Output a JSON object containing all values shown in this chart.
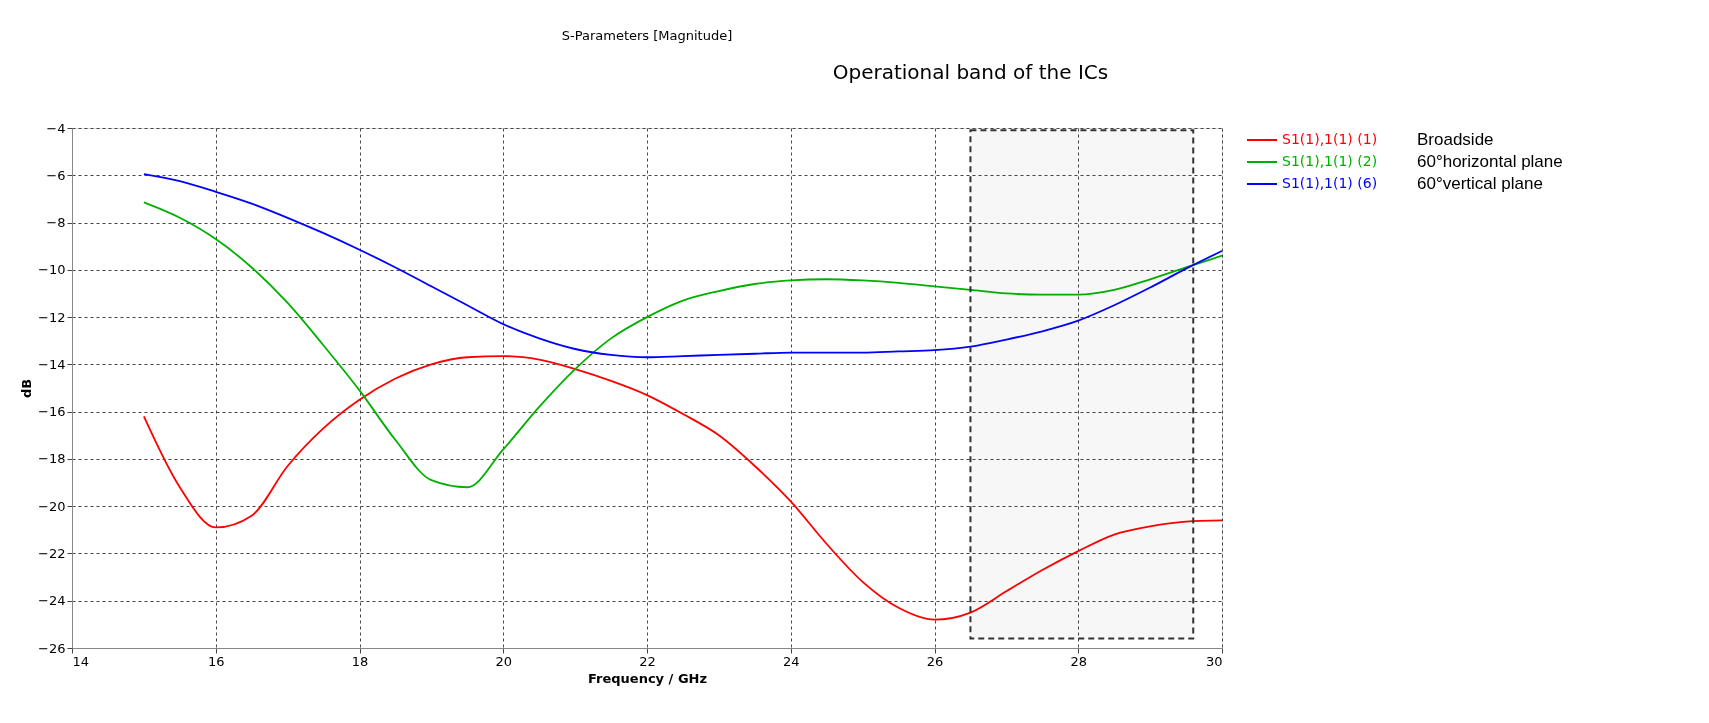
{
  "chart_data": {
    "type": "line",
    "title": "S-Parameters [Magnitude]",
    "xlabel": "Frequency / GHz",
    "ylabel": "dB",
    "x": [
      15,
      15.5,
      16,
      16.5,
      17,
      17.5,
      18,
      18.5,
      19,
      19.5,
      20,
      20.5,
      21,
      21.5,
      22,
      22.5,
      23,
      23.5,
      24,
      24.5,
      25,
      25.5,
      26,
      26.5,
      27,
      27.5,
      28,
      28.5,
      29,
      29.5,
      30
    ],
    "series": [
      {
        "name": "S1(1),1(1) (1)",
        "color": "#ff0000",
        "values": [
          -16.2,
          -19.2,
          -20.9,
          -20.4,
          -18.3,
          -16.7,
          -15.5,
          -14.6,
          -14.0,
          -13.7,
          -13.65,
          -13.8,
          -14.2,
          -14.7,
          -15.3,
          -16.1,
          -17.0,
          -18.3,
          -19.8,
          -21.6,
          -23.2,
          -24.3,
          -24.8,
          -24.5,
          -23.6,
          -22.7,
          -21.9,
          -21.2,
          -20.85,
          -20.65,
          -20.6
        ]
      },
      {
        "name": "S1(1),1(1) (2)",
        "color": "#00b000",
        "values": [
          -7.15,
          -7.8,
          -8.7,
          -9.9,
          -11.4,
          -13.2,
          -15.1,
          -17.2,
          -18.9,
          -19.2,
          -17.6,
          -15.8,
          -14.2,
          -12.9,
          -12.0,
          -11.3,
          -10.9,
          -10.6,
          -10.45,
          -10.4,
          -10.45,
          -10.55,
          -10.7,
          -10.85,
          -11.0,
          -11.05,
          -11.05,
          -10.85,
          -10.4,
          -9.9,
          -9.4
        ]
      },
      {
        "name": "S1(1),1(1) (6)",
        "color": "#0000ff",
        "values": [
          -5.95,
          -6.25,
          -6.7,
          -7.2,
          -7.8,
          -8.45,
          -9.15,
          -9.9,
          -10.7,
          -11.5,
          -12.3,
          -12.9,
          -13.35,
          -13.6,
          -13.7,
          -13.65,
          -13.6,
          -13.55,
          -13.5,
          -13.5,
          -13.5,
          -13.45,
          -13.4,
          -13.25,
          -12.95,
          -12.6,
          -12.15,
          -11.5,
          -10.75,
          -9.95,
          -9.2
        ]
      }
    ],
    "annotations": [
      "Broadside",
      "60°horizontal plane",
      "60°vertical plane"
    ],
    "bands": [
      {
        "axis": "x",
        "from": 26.5,
        "to": 29.6,
        "label": "Operational band of the ICs",
        "color": "#333333"
      }
    ],
    "xlim": [
      14,
      30
    ],
    "xticks": [
      14,
      16,
      18,
      20,
      22,
      24,
      26,
      28,
      30
    ],
    "ylim": [
      -26,
      -4
    ],
    "yticks": [
      -26,
      -24,
      -22,
      -20,
      -18,
      -16,
      -14,
      -12,
      -10,
      -8,
      -6,
      -4
    ],
    "grid": true,
    "legend": "top right",
    "marker": "none",
    "line_style": "solid"
  }
}
